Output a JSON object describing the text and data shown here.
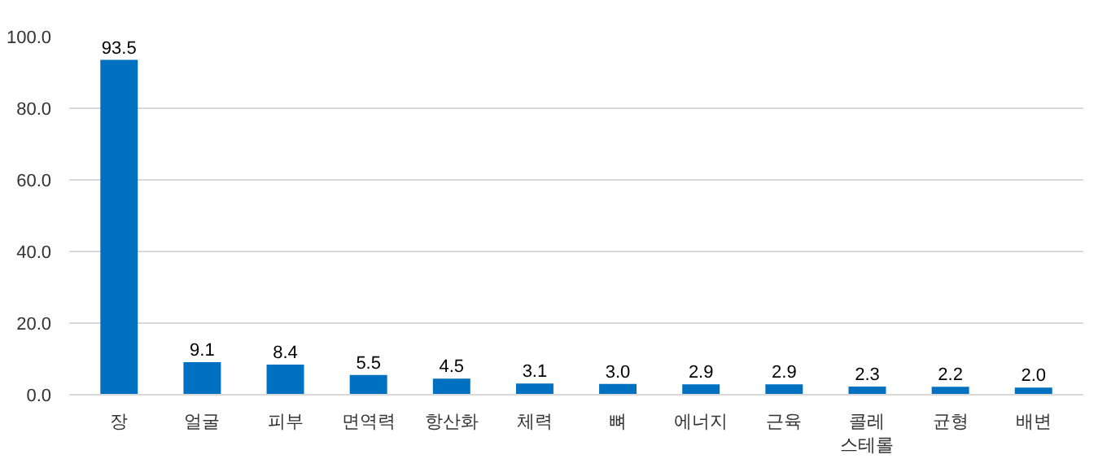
{
  "chart_data": {
    "type": "bar",
    "categories": [
      "장",
      "얼굴",
      "피부",
      "면역력",
      "항산화",
      "체력",
      "뼈",
      "에너지",
      "근육",
      "콜레\n스테롤",
      "균형",
      "배변"
    ],
    "values": [
      93.5,
      9.1,
      8.4,
      5.5,
      4.5,
      3.1,
      3.0,
      2.9,
      2.9,
      2.3,
      2.2,
      2.0
    ],
    "color": "#0070c0",
    "ylim": [
      0,
      100
    ],
    "yticks": [
      {
        "value": 0,
        "label": "0.0"
      },
      {
        "value": 20,
        "label": "20.0"
      },
      {
        "value": 40,
        "label": "40.0"
      },
      {
        "value": 60,
        "label": "60.0"
      },
      {
        "value": 80,
        "label": "80.0"
      },
      {
        "value": 100,
        "label": "100.0"
      }
    ],
    "grid": "y",
    "value_labels": [
      "93.5",
      "9.1",
      "8.4",
      "5.5",
      "4.5",
      "3.1",
      "3.0",
      "2.9",
      "2.9",
      "2.3",
      "2.2",
      "2.0"
    ]
  }
}
